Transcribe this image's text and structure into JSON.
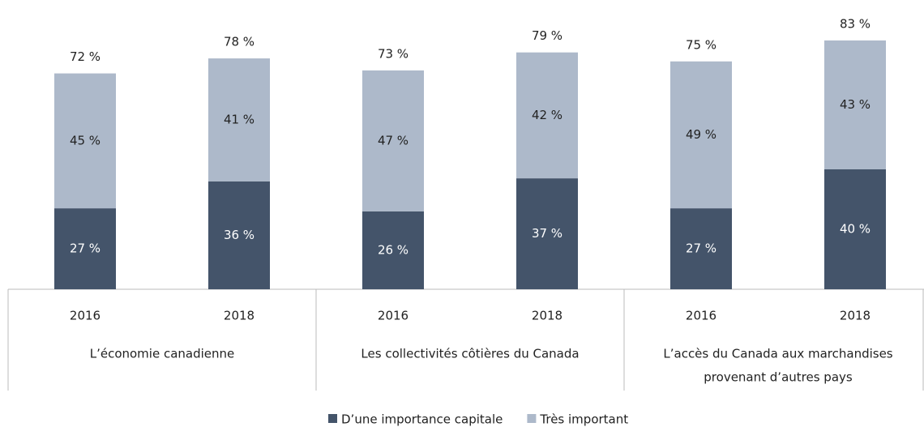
{
  "chart_data": {
    "type": "stacked-bar",
    "categories": [
      "2016",
      "2018",
      "2016",
      "2018",
      "2016",
      "2018"
    ],
    "groups": [
      [
        "L’économie canadienne"
      ],
      [
        "Les collectivités côtières du Canada"
      ],
      [
        "L’accès du Canada aux marchandises",
        "provenant d’autres pays"
      ]
    ],
    "series": [
      {
        "name": "D’une importance capitale",
        "color": "#44546a",
        "values": [
          27,
          36,
          26,
          37,
          27,
          40
        ],
        "value_labels": [
          "27 %",
          "36 %",
          "26 %",
          "37 %",
          "27 %",
          "40 %"
        ]
      },
      {
        "name": "Très important",
        "color": "#adb9ca",
        "values": [
          45,
          41,
          47,
          42,
          49,
          43
        ],
        "value_labels": [
          "45 %",
          "41 %",
          "47 %",
          "42 %",
          "49 %",
          "43 %"
        ]
      }
    ],
    "totals": [
      72,
      78,
      73,
      79,
      75,
      83
    ],
    "total_labels": [
      "72 %",
      "78 %",
      "73 %",
      "79 %",
      "75 %",
      "83 %"
    ]
  }
}
